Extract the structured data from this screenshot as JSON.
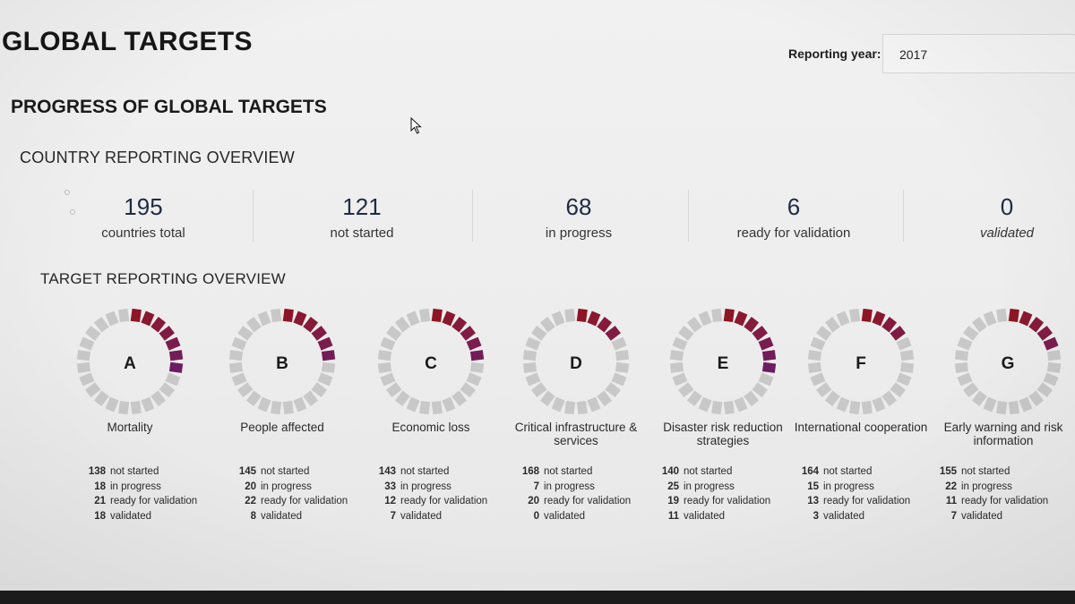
{
  "page_title": "GLOBAL TARGETS",
  "reporting_year": {
    "label": "Reporting year:",
    "value": "2017"
  },
  "section_title": "PROGRESS OF GLOBAL TARGETS",
  "country_overview": {
    "title": "COUNTRY REPORTING OVERVIEW",
    "stats": [
      {
        "value": "195",
        "label": "countries total"
      },
      {
        "value": "121",
        "label": "not started"
      },
      {
        "value": "68",
        "label": "in progress"
      },
      {
        "value": "6",
        "label": "ready for validation"
      },
      {
        "value": "0",
        "label": "validated"
      }
    ]
  },
  "target_overview": {
    "title": "TARGET REPORTING OVERVIEW",
    "colors": {
      "segment_empty": "#c8c8c8",
      "ring_shades": [
        "#8e1525",
        "#8a1830",
        "#851a3a",
        "#801c44",
        "#7a1d4e",
        "#731d58",
        "#6c1c62",
        "#651b6c"
      ]
    },
    "targets": [
      {
        "letter": "A",
        "name": "Mortality",
        "progress_segments": 7,
        "stats": [
          {
            "count": "138",
            "label": "not started"
          },
          {
            "count": "18",
            "label": "in progress"
          },
          {
            "count": "21",
            "label": "ready for validation"
          },
          {
            "count": "18",
            "label": "validated"
          }
        ]
      },
      {
        "letter": "B",
        "name": "People affected",
        "progress_segments": 6,
        "stats": [
          {
            "count": "145",
            "label": "not started"
          },
          {
            "count": "20",
            "label": "in progress"
          },
          {
            "count": "22",
            "label": "ready for validation"
          },
          {
            "count": "8",
            "label": "validated"
          }
        ]
      },
      {
        "letter": "C",
        "name": "Economic loss",
        "progress_segments": 6,
        "stats": [
          {
            "count": "143",
            "label": "not started"
          },
          {
            "count": "33",
            "label": "in progress"
          },
          {
            "count": "12",
            "label": "ready for validation"
          },
          {
            "count": "7",
            "label": "validated"
          }
        ]
      },
      {
        "letter": "D",
        "name": "Critical infrastructure & services",
        "progress_segments": 4,
        "stats": [
          {
            "count": "168",
            "label": "not started"
          },
          {
            "count": "7",
            "label": "in progress"
          },
          {
            "count": "20",
            "label": "ready for validation"
          },
          {
            "count": "0",
            "label": "validated"
          }
        ]
      },
      {
        "letter": "E",
        "name": "Disaster risk reduction strategies",
        "progress_segments": 7,
        "stats": [
          {
            "count": "140",
            "label": "not started"
          },
          {
            "count": "25",
            "label": "in progress"
          },
          {
            "count": "19",
            "label": "ready for validation"
          },
          {
            "count": "11",
            "label": "validated"
          }
        ]
      },
      {
        "letter": "F",
        "name": "International cooperation",
        "progress_segments": 4,
        "stats": [
          {
            "count": "164",
            "label": "not started"
          },
          {
            "count": "15",
            "label": "in progress"
          },
          {
            "count": "13",
            "label": "ready for validation"
          },
          {
            "count": "3",
            "label": "validated"
          }
        ]
      },
      {
        "letter": "G",
        "name": "Early warning and risk information",
        "progress_segments": 5,
        "stats": [
          {
            "count": "155",
            "label": "not started"
          },
          {
            "count": "22",
            "label": "in progress"
          },
          {
            "count": "11",
            "label": "ready for validation"
          },
          {
            "count": "7",
            "label": "validated"
          }
        ]
      }
    ]
  }
}
